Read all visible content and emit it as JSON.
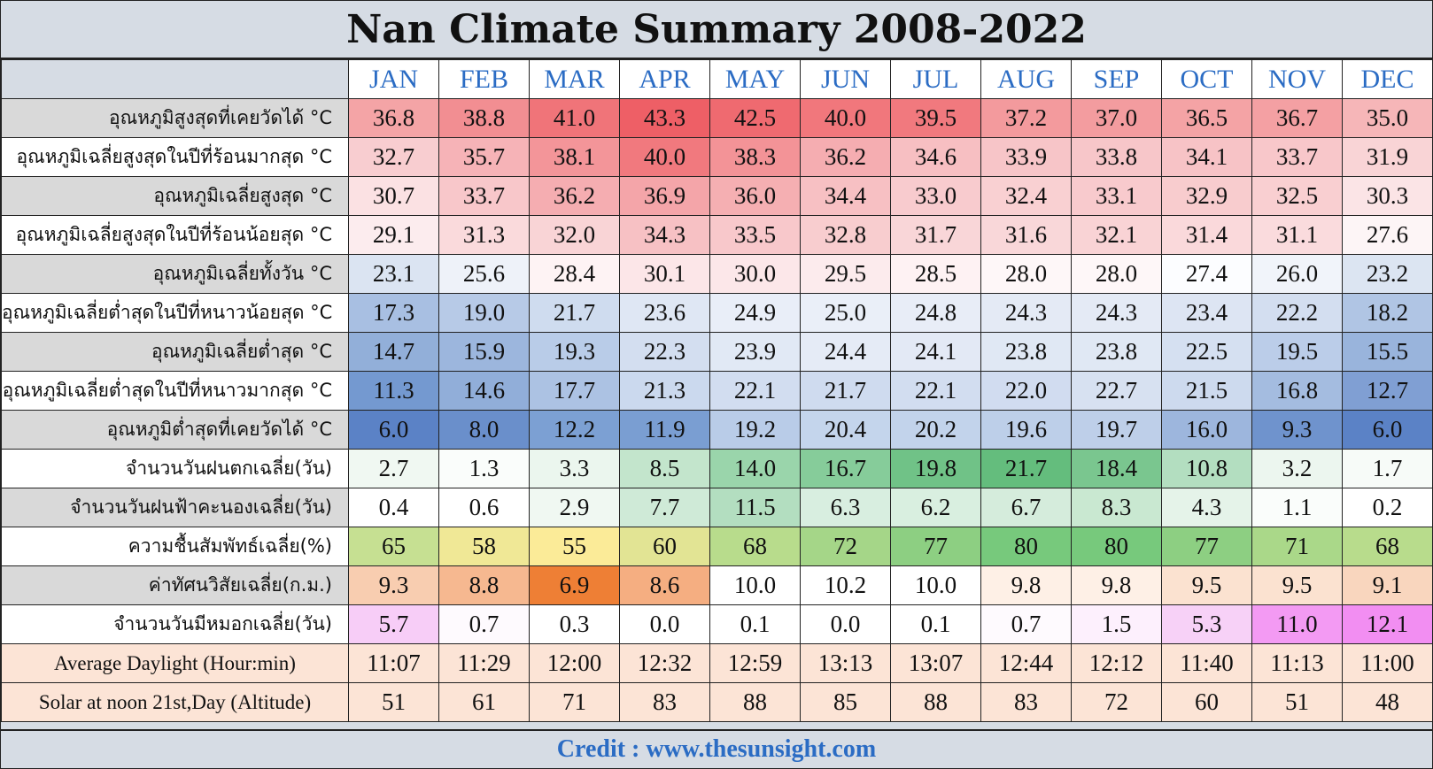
{
  "title": "Nan Climate Summary 2008-2022",
  "credit": "Credit : www.thesunsight.com",
  "chart_data": {
    "type": "table",
    "title": "Nan Climate Summary 2008-2022",
    "columns": [
      "JAN",
      "FEB",
      "MAR",
      "APR",
      "MAY",
      "JUN",
      "JUL",
      "AUG",
      "SEP",
      "OCT",
      "NOV",
      "DEC"
    ],
    "rows": [
      {
        "label": "อุณหภูมิสูงสุดที่เคยวัดได้ °C",
        "label_bg": "#d9d9d9",
        "values": [
          "36.8",
          "38.8",
          "41.0",
          "43.3",
          "42.5",
          "40.0",
          "39.5",
          "37.2",
          "37.0",
          "36.5",
          "36.7",
          "35.0"
        ],
        "colors": [
          "#f4a4a6",
          "#f28e92",
          "#f07479",
          "#ee5f66",
          "#ef6a70",
          "#f1777c",
          "#f1797e",
          "#f39a9d",
          "#f39c9f",
          "#f4a3a5",
          "#f4a0a3",
          "#f6b6b8"
        ]
      },
      {
        "label": "อุณหภูมิเฉลี่ยสูงสุดในปีที่ร้อนมากสุด °C",
        "label_bg": "#ffffff",
        "values": [
          "32.7",
          "35.7",
          "38.1",
          "40.0",
          "38.3",
          "36.2",
          "34.6",
          "33.9",
          "33.8",
          "34.1",
          "33.7",
          "31.9"
        ],
        "colors": [
          "#f8cdd0",
          "#f6b3b7",
          "#f39599",
          "#f1797e",
          "#f39397",
          "#f5adb1",
          "#f7bfc2",
          "#f7c5c8",
          "#f7c6c9",
          "#f7c3c6",
          "#f8c7ca",
          "#f9d4d6"
        ]
      },
      {
        "label": "อุณหภูมิเฉลี่ยสูงสุด °C",
        "label_bg": "#d9d9d9",
        "values": [
          "30.7",
          "33.7",
          "36.2",
          "36.9",
          "36.0",
          "34.4",
          "33.0",
          "32.4",
          "33.1",
          "32.9",
          "32.5",
          "30.3"
        ],
        "colors": [
          "#fbe1e3",
          "#f8c7ca",
          "#f5adb1",
          "#f4a5a9",
          "#f5afb2",
          "#f7c0c3",
          "#f8cbce",
          "#f9d0d2",
          "#f8cacd",
          "#f8ccce",
          "#f9cfd1",
          "#fbe4e6"
        ]
      },
      {
        "label": "อุณหภูมิเฉลี่ยสูงสุดในปีที่ร้อนน้อยสุด °C",
        "label_bg": "#ffffff",
        "values": [
          "29.1",
          "31.3",
          "32.0",
          "34.3",
          "33.5",
          "32.8",
          "31.7",
          "31.6",
          "32.1",
          "31.4",
          "31.1",
          "27.6"
        ],
        "colors": [
          "#fcecee",
          "#fadadc",
          "#f9d4d6",
          "#f7c1c4",
          "#f8c8cb",
          "#f8cdcf",
          "#f9d6d8",
          "#f9d7d9",
          "#f9d3d5",
          "#fad9db",
          "#fadbdd",
          "#fdf5f6"
        ]
      },
      {
        "label": "อุณหภูมิเฉลี่ยทั้งวัน °C",
        "label_bg": "#d9d9d9",
        "values": [
          "23.1",
          "25.6",
          "28.4",
          "30.1",
          "30.0",
          "29.5",
          "28.5",
          "28.0",
          "28.0",
          "27.4",
          "26.0",
          "23.2"
        ],
        "colors": [
          "#dbe4f2",
          "#eef2f9",
          "#fef3f4",
          "#fce6e8",
          "#fce7e9",
          "#fcebed",
          "#fef2f3",
          "#fef7f8",
          "#fef7f8",
          "#fcfdff",
          "#f1f4fa",
          "#dce5f2"
        ]
      },
      {
        "label": "อุณหภูมิเฉลี่ยต่ำสุดในปีที่หนาวน้อยสุด °C",
        "label_bg": "#ffffff",
        "values": [
          "17.3",
          "19.0",
          "21.7",
          "23.6",
          "24.9",
          "25.0",
          "24.8",
          "24.3",
          "24.3",
          "23.4",
          "22.2",
          "18.2"
        ],
        "colors": [
          "#a8bfe2",
          "#b7cae7",
          "#cfdcef",
          "#dfe7f4",
          "#e9eef8",
          "#eaeff8",
          "#e8edf7",
          "#e4eaf5",
          "#e4eaf5",
          "#dde5f3",
          "#d3def0",
          "#b0c5e4"
        ]
      },
      {
        "label": "อุณหภูมิเฉลี่ยต่ำสุด °C",
        "label_bg": "#d9d9d9",
        "values": [
          "14.7",
          "15.9",
          "19.3",
          "22.3",
          "23.9",
          "24.4",
          "24.1",
          "23.8",
          "23.8",
          "22.5",
          "19.5",
          "15.5"
        ],
        "colors": [
          "#92afd9",
          "#9cb6dd",
          "#b9cce8",
          "#d3def0",
          "#e1e9f5",
          "#e5ebf6",
          "#e3e9f5",
          "#e0e8f4",
          "#e0e8f4",
          "#d5e0f1",
          "#bbcde9",
          "#99b4dc"
        ]
      },
      {
        "label": "อุณหภูมิเฉลี่ยต่ำสุดในปีที่หนาวมากสุด °C",
        "label_bg": "#ffffff",
        "values": [
          "11.3",
          "14.6",
          "17.7",
          "21.3",
          "22.1",
          "21.7",
          "22.1",
          "22.0",
          "22.7",
          "21.5",
          "16.8",
          "12.7"
        ],
        "colors": [
          "#7499d0",
          "#91aed9",
          "#acc2e3",
          "#cbd9ee",
          "#d2ddf0",
          "#cfdbef",
          "#d2ddf0",
          "#d1dcf0",
          "#d7e1f1",
          "#cddaee",
          "#a4bce0",
          "#809fd3"
        ]
      },
      {
        "label": "อุณหภูมิต่ำสุดที่เคยวัดได้ °C",
        "label_bg": "#d9d9d9",
        "values": [
          "6.0",
          "8.0",
          "12.2",
          "11.9",
          "19.2",
          "20.4",
          "20.2",
          "19.6",
          "19.7",
          "16.0",
          "9.3",
          "6.0"
        ],
        "colors": [
          "#5b82c6",
          "#6a8fcb",
          "#7ca0d3",
          "#7a9ed2",
          "#b9cce8",
          "#c4d5ec",
          "#c2d3eb",
          "#bdcfe9",
          "#becfe9",
          "#9db6dd",
          "#6f93cd",
          "#5b82c6"
        ]
      },
      {
        "label": "จำนวนวันฝนตกเฉลี่ย(วัน)",
        "label_bg": "#ffffff",
        "values": [
          "2.7",
          "1.3",
          "3.3",
          "8.5",
          "14.0",
          "16.7",
          "19.8",
          "21.7",
          "18.4",
          "10.8",
          "3.2",
          "1.7"
        ],
        "colors": [
          "#f0f8f2",
          "#fafdfb",
          "#ebf6ee",
          "#c3e5cc",
          "#9ad5ab",
          "#86cc9a",
          "#70c287",
          "#64bd7d",
          "#7ac68f",
          "#b3dec0",
          "#ecf6ef",
          "#f7fbf8"
        ]
      },
      {
        "label": "จำนวนวันฝนฟ้าคะนองเฉลี่ย(วัน)",
        "label_bg": "#d9d9d9",
        "values": [
          "0.4",
          "0.6",
          "2.9",
          "7.7",
          "11.5",
          "6.3",
          "6.2",
          "6.7",
          "8.3",
          "4.3",
          "1.1",
          "0.2"
        ],
        "colors": [
          "#ffffff",
          "#ffffff",
          "#f0f8f2",
          "#cfead7",
          "#b3dec0",
          "#d8eee0",
          "#d9efe0",
          "#d5ecdc",
          "#c9e8d1",
          "#e5f3e9",
          "#fafdfb",
          "#ffffff"
        ]
      },
      {
        "label": "ความชื้นสัมพัทธ์เฉลี่ย(%)",
        "label_bg": "#ffffff",
        "values": [
          "65",
          "58",
          "55",
          "60",
          "68",
          "72",
          "77",
          "80",
          "80",
          "77",
          "71",
          "68"
        ],
        "colors": [
          "#c6e092",
          "#f0e896",
          "#fbeb98",
          "#e2e494",
          "#b8dc8c",
          "#a5d688",
          "#8dcf82",
          "#77c97c",
          "#77c97c",
          "#8dcf82",
          "#aad889",
          "#b8dc8c"
        ]
      },
      {
        "label": "ค่าทัศนวิสัยเฉลี่ย(ก.ม.)",
        "label_bg": "#d9d9d9",
        "values": [
          "9.3",
          "8.8",
          "6.9",
          "8.6",
          "10.0",
          "10.2",
          "10.0",
          "9.8",
          "9.8",
          "9.5",
          "9.5",
          "9.1"
        ],
        "colors": [
          "#f8cdb0",
          "#f6b890",
          "#ee7f35",
          "#f5ae81",
          "#ffffff",
          "#ffffff",
          "#ffffff",
          "#fef0e6",
          "#fef0e6",
          "#fbe2d0",
          "#fbe2d0",
          "#f9d6be"
        ]
      },
      {
        "label": "จำนวนวันมีหมอกเฉลี่ย(วัน)",
        "label_bg": "#ffffff",
        "values": [
          "5.7",
          "0.7",
          "0.3",
          "0.0",
          "0.1",
          "0.0",
          "0.1",
          "0.7",
          "1.5",
          "5.3",
          "11.0",
          "12.1"
        ],
        "colors": [
          "#f7cdf7",
          "#fefafe",
          "#ffffff",
          "#ffffff",
          "#ffffff",
          "#ffffff",
          "#ffffff",
          "#fefafe",
          "#fdf0fd",
          "#f7d1f7",
          "#f39af3",
          "#f28ef2"
        ]
      },
      {
        "label": "Average Daylight (Hour:min)",
        "label_bg": "#fce4d6",
        "en": true,
        "values": [
          "11:07",
          "11:29",
          "12:00",
          "12:32",
          "12:59",
          "13:13",
          "13:07",
          "12:44",
          "12:12",
          "11:40",
          "11:13",
          "11:00"
        ],
        "colors": [
          "#fce4d6",
          "#fce4d6",
          "#fce4d6",
          "#fce4d6",
          "#fce4d6",
          "#fce4d6",
          "#fce4d6",
          "#fce4d6",
          "#fce4d6",
          "#fce4d6",
          "#fce4d6",
          "#fce4d6"
        ]
      },
      {
        "label": "Solar at noon 21st,Day (Altitude)",
        "label_bg": "#fce4d6",
        "en": true,
        "values": [
          "51",
          "61",
          "71",
          "83",
          "88",
          "85",
          "88",
          "83",
          "72",
          "60",
          "51",
          "48"
        ],
        "colors": [
          "#fce4d6",
          "#fce4d6",
          "#fce4d6",
          "#fce4d6",
          "#fce4d6",
          "#fce4d6",
          "#fce4d6",
          "#fce4d6",
          "#fce4d6",
          "#fce4d6",
          "#fce4d6",
          "#fce4d6"
        ]
      }
    ]
  }
}
